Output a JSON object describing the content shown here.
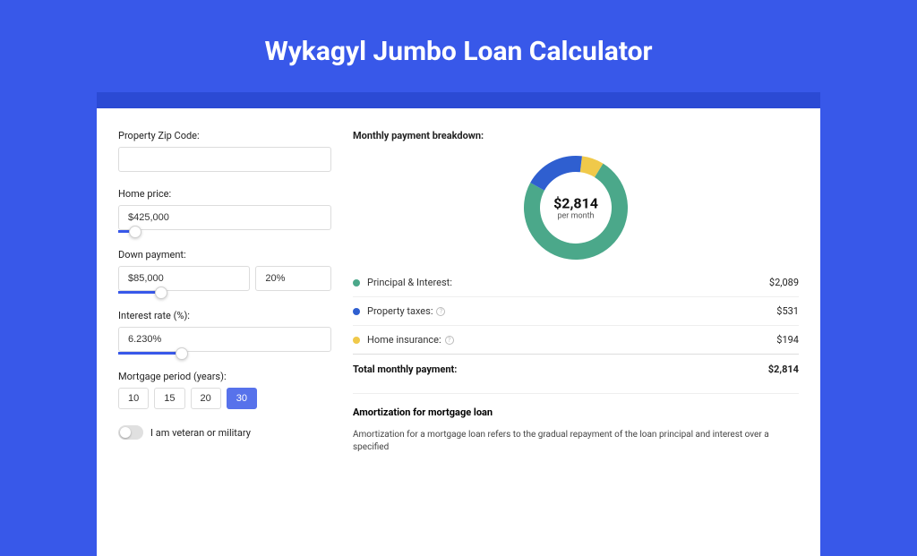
{
  "page": {
    "title": "Wykagyl Jumbo Loan Calculator",
    "background_color": "#3858e9",
    "band_color": "#2b4ad4",
    "card_color": "#ffffff"
  },
  "form": {
    "zip_label": "Property Zip Code:",
    "zip_value": "",
    "home_price_label": "Home price:",
    "home_price_value": "$425,000",
    "home_price_slider": {
      "percent": 8
    },
    "down_label": "Down payment:",
    "down_value": "$85,000",
    "down_percent": "20%",
    "down_slider": {
      "percent": 20
    },
    "rate_label": "Interest rate (%):",
    "rate_value": "6.230%",
    "rate_slider": {
      "percent": 30
    },
    "period_label": "Mortgage period (years):",
    "periods": [
      "10",
      "15",
      "20",
      "30"
    ],
    "period_active_index": 3,
    "veteran_label": "I am veteran or military"
  },
  "breakdown": {
    "title": "Monthly payment breakdown:",
    "chart": {
      "type": "donut",
      "segments": [
        {
          "label": "Principal & Interest:",
          "value": "$2,089",
          "color": "#4ba88a",
          "fraction": 0.742
        },
        {
          "label": "Property taxes:",
          "value": "$531",
          "color": "#2f5fd0",
          "fraction": 0.189
        },
        {
          "label": "Home insurance:",
          "value": "$194",
          "color": "#f0c94a",
          "fraction": 0.069
        }
      ],
      "center_amount": "$2,814",
      "center_sub": "per month",
      "thickness": 18,
      "size": 120,
      "background": "#ffffff"
    },
    "total_label": "Total monthly payment:",
    "total_value": "$2,814"
  },
  "amortization": {
    "title": "Amortization for mortgage loan",
    "text": "Amortization for a mortgage loan refers to the gradual repayment of the loan principal and interest over a specified"
  },
  "colors": {
    "accent": "#3858e9",
    "border": "#dcdcdc",
    "text": "#222222"
  }
}
